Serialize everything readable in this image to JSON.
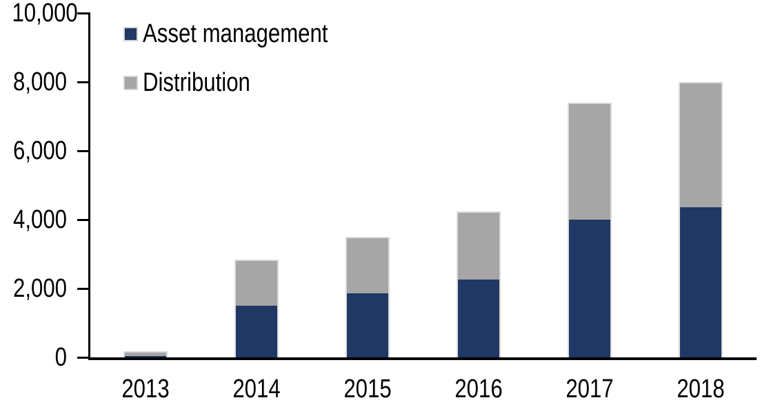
{
  "chart_data": {
    "type": "bar",
    "stacked": true,
    "title": "",
    "xlabel": "",
    "ylabel": "",
    "categories": [
      "2013",
      "2014",
      "2015",
      "2016",
      "2017",
      "2018"
    ],
    "series": [
      {
        "name": "Asset management",
        "color": "#1F3864",
        "values": [
          90,
          1550,
          1900,
          2300,
          4050,
          4400
        ]
      },
      {
        "name": "Distribution",
        "color": "#A6A6A6",
        "values": [
          90,
          1300,
          1600,
          1950,
          3350,
          3600
        ]
      }
    ],
    "totals": [
      180,
      2850,
      3500,
      4250,
      7400,
      8000
    ],
    "ylim": [
      0,
      10000
    ],
    "ytick_step": 2000,
    "ytick_labels": [
      "0",
      "2,000",
      "4,000",
      "6,000",
      "8,000",
      "10,000"
    ],
    "grid": false,
    "legend_position": "inside-top-left",
    "axis_color": "#000000",
    "bar_outline_color": "#DBDBDB",
    "background_color": "#FFFFFF"
  }
}
